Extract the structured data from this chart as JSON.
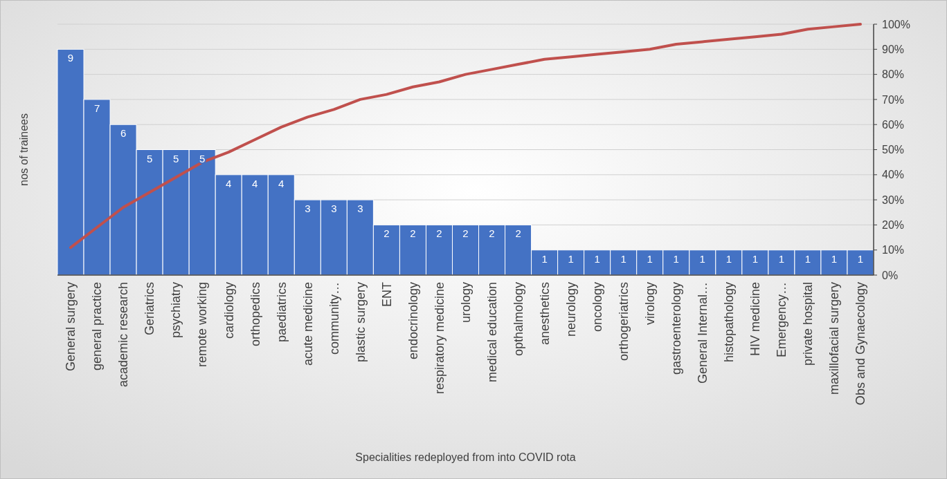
{
  "chart_data": {
    "type": "bar",
    "xlabel": "Specialities redeployed from  into COVID rota",
    "ylabel": "nos of trainees",
    "categories": [
      "General surgery",
      "general practice",
      "academic research",
      "Geriatrics",
      "psychiatry",
      "remote working",
      "cardiology",
      "orthopedics",
      "paediatrics",
      "acute medicine",
      "community…",
      "plastic surgery",
      "ENT",
      "endocrinology",
      "respiratory medicine",
      "urology",
      "medical education",
      "opthalmology",
      "anesthetics",
      "neurology",
      "oncology",
      "orthogeriatrics",
      "virology",
      "gastroenterology",
      "General Internal…",
      "histopathology",
      "HIV medicine",
      "Emergency…",
      "private hospital",
      "maxillofacial surgery",
      "Obs and Gynaecology"
    ],
    "series": [
      {
        "color": "#4472c4",
        "values": [
          9,
          7,
          6,
          5,
          5,
          5,
          4,
          4,
          4,
          3,
          3,
          3,
          2,
          2,
          2,
          2,
          2,
          2,
          1,
          1,
          1,
          1,
          1,
          1,
          1,
          1,
          1,
          1,
          1,
          1,
          1
        ],
        "value_labels": [
          "9",
          "7",
          "6",
          "5",
          "5",
          "5",
          "4",
          "4",
          "4",
          "3",
          "3",
          "3",
          "2",
          "2",
          "2",
          "2",
          "2",
          "2",
          "1",
          "1",
          "1",
          "1",
          "1",
          "1",
          "1",
          "1",
          "1",
          "1",
          "1",
          "1",
          "1"
        ]
      },
      {
        "type": "line",
        "axis": "y2",
        "color": "#c0504d",
        "values": [
          11,
          19,
          27,
          33,
          39,
          45,
          49,
          54,
          59,
          63,
          66,
          70,
          72,
          75,
          77,
          80,
          82,
          84,
          86,
          87,
          88,
          89,
          90,
          92,
          93,
          94,
          95,
          96,
          98,
          99,
          100
        ]
      }
    ],
    "ylim": [
      0,
      10
    ],
    "y2lim": [
      0,
      100
    ],
    "y2ticks": [
      {
        "value": 0,
        "label": "0%"
      },
      {
        "value": 10,
        "label": "10%"
      },
      {
        "value": 20,
        "label": "20%"
      },
      {
        "value": 30,
        "label": "30%"
      },
      {
        "value": 40,
        "label": "40%"
      },
      {
        "value": 50,
        "label": "50%"
      },
      {
        "value": 60,
        "label": "60%"
      },
      {
        "value": 70,
        "label": "70%"
      },
      {
        "value": 80,
        "label": "80%"
      },
      {
        "value": 90,
        "label": "90%"
      },
      {
        "value": 100,
        "label": "100%"
      }
    ],
    "grid": true,
    "marker": "none",
    "line_style": "solid"
  }
}
